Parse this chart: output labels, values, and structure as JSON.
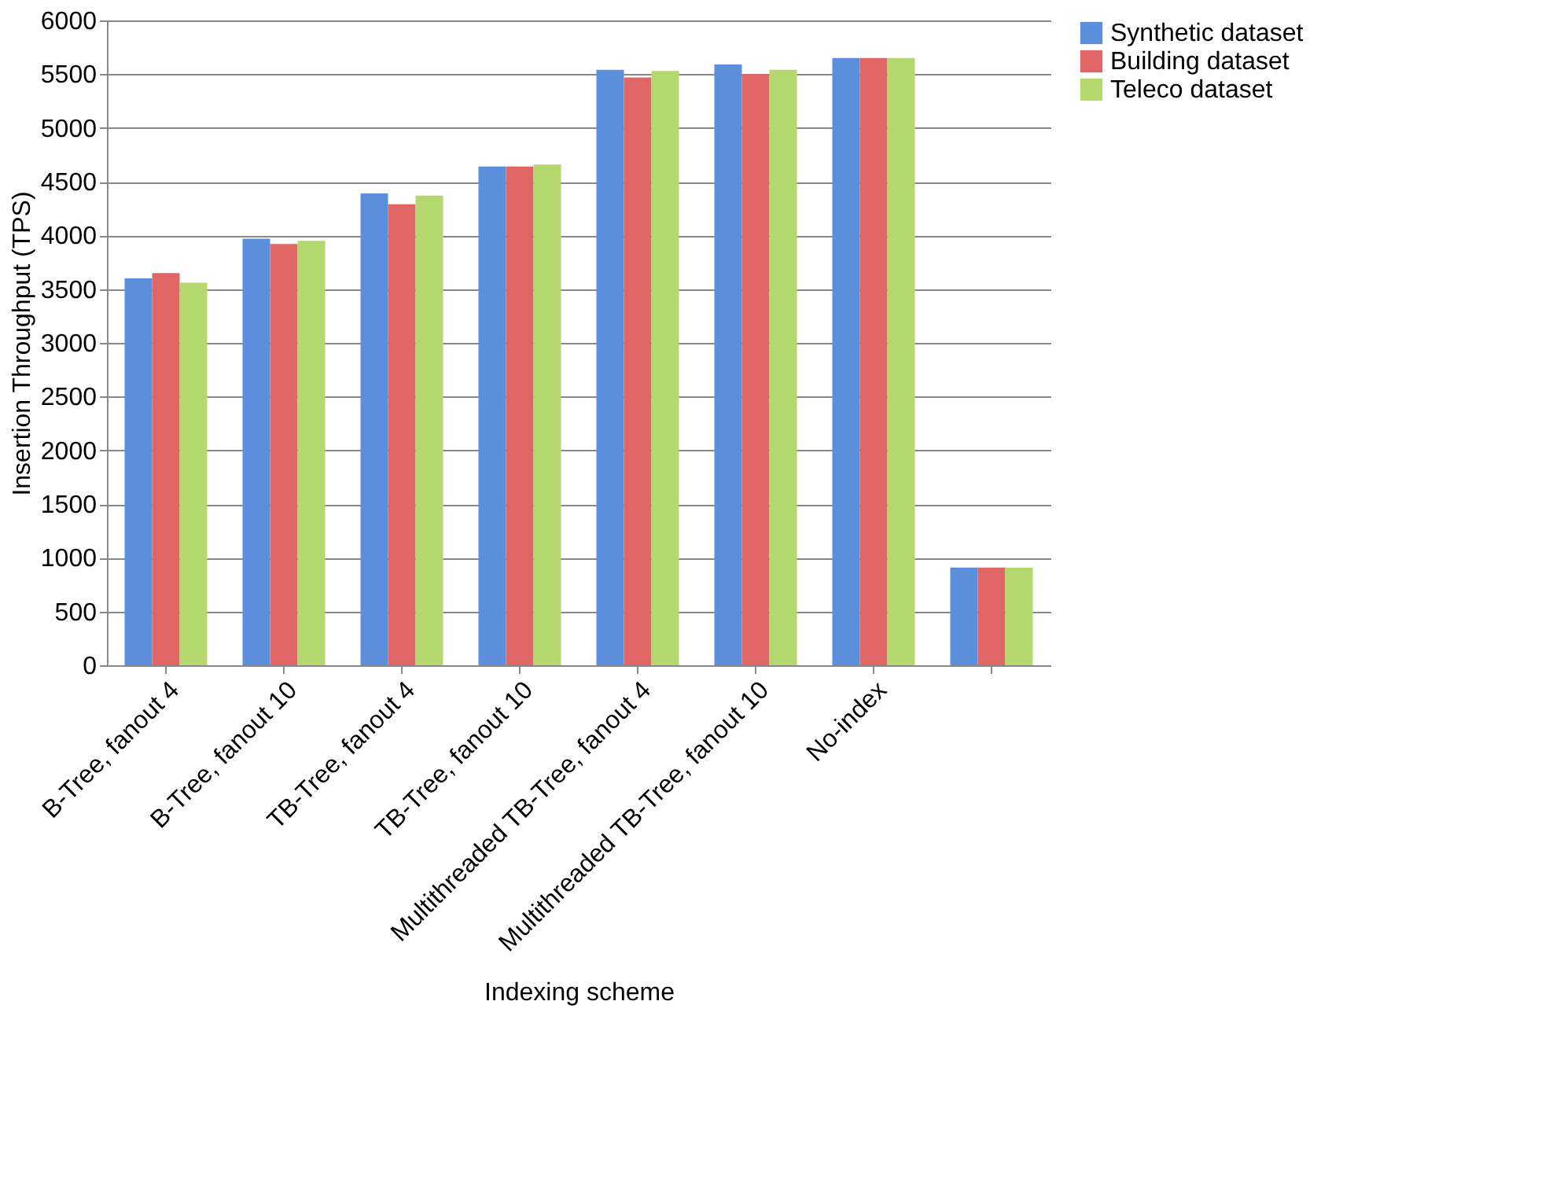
{
  "chart_data": {
    "type": "bar",
    "xlabel": "Indexing scheme",
    "ylabel": "Insertion Throughput (TPS)",
    "categories": [
      "B-Tree, fanout 4",
      "B-Tree, fanout 10",
      "TB-Tree, fanout 4",
      "TB-Tree, fanout 10",
      "Multithreaded TB-Tree, fanout 4",
      "Multithreaded TB-Tree, fanout 10",
      "No-index",
      null
    ],
    "series": [
      {
        "name": "Synthetic dataset",
        "color": "#5b8fdc",
        "values": [
          3600,
          3970,
          4390,
          4640,
          5540,
          5590,
          5650,
          910
        ]
      },
      {
        "name": "Building dataset",
        "color": "#e06666",
        "values": [
          3650,
          3920,
          4290,
          4640,
          5470,
          5500,
          5650,
          910
        ]
      },
      {
        "name": "Teleco dataset",
        "color": "#b5d86e",
        "values": [
          3560,
          3950,
          4370,
          4660,
          5530,
          5540,
          5650,
          910
        ]
      }
    ],
    "ylim": [
      0,
      6000
    ],
    "yticks": [
      0,
      500,
      1000,
      1500,
      2000,
      2500,
      3000,
      3500,
      4000,
      4500,
      5000,
      5500,
      6000
    ],
    "grid": "y",
    "legend": "right"
  }
}
